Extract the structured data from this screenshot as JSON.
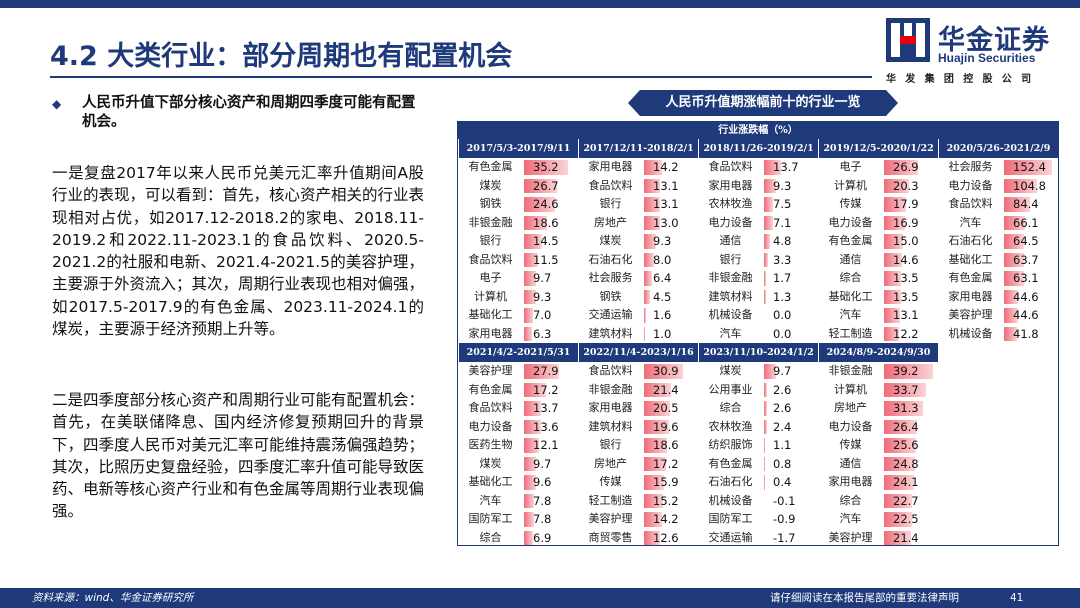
{
  "header": {
    "title": "4.2 大类行业：部分周期也有配置机会",
    "logo_cn": "华金证券",
    "logo_en": "Huajin Securities",
    "logo_sub": "华发集团控股公司",
    "brand_color": "#1f3a7a"
  },
  "left": {
    "bullet": "人民币升值下部分核心资产和周期四季度可能有配置机会。",
    "para1": "一是复盘2017年以来人民币兑美元汇率升值期间A股行业的表现，可以看到：首先，核心资产相关的行业表现相对占优，如2017.12-2018.2的家电、2018.11-2019.2和2022.11-2023.1的食品饮料、2020.5-2021.2的社服和电新、2021.4-2021.5的美容护理，主要源于外资流入；其次，周期行业表现也相对偏强，如2017.5-2017.9的有色金属、2023.11-2024.1的煤炭，主要源于经济预期上升等。",
    "para2": "二是四季度部分核心资产和周期行业可能有配置机会：首先，在美联储降息、国内经济修复预期回升的背景下，四季度人民币对美元汇率可能维持震荡偏强趋势；其次，比照历史复盘经验，四季度汇率升值可能导致医药、电新等核心资产行业和有色金属等周期行业表现偏强。"
  },
  "table": {
    "title": "人民币升值期涨幅前十的行业一览",
    "unit_header": "行业涨跌幅（%）",
    "bar_color": "#f06b78",
    "top": [
      {
        "period": "2017/5/3-2017/9/11",
        "max": 40,
        "rows": [
          {
            "industry": "有色金属",
            "value": "35.2"
          },
          {
            "industry": "煤炭",
            "value": "26.7"
          },
          {
            "industry": "钢铁",
            "value": "24.6"
          },
          {
            "industry": "非银金融",
            "value": "18.6"
          },
          {
            "industry": "银行",
            "value": "14.5"
          },
          {
            "industry": "食品饮料",
            "value": "11.5"
          },
          {
            "industry": "电子",
            "value": "9.7"
          },
          {
            "industry": "计算机",
            "value": "9.3"
          },
          {
            "industry": "基础化工",
            "value": "7.0"
          },
          {
            "industry": "家用电器",
            "value": "6.3"
          }
        ]
      },
      {
        "period": "2017/12/11-2018/2/1",
        "max": 40,
        "rows": [
          {
            "industry": "家用电器",
            "value": "14.2"
          },
          {
            "industry": "食品饮料",
            "value": "13.1"
          },
          {
            "industry": "银行",
            "value": "13.1"
          },
          {
            "industry": "房地产",
            "value": "13.0"
          },
          {
            "industry": "煤炭",
            "value": "9.3"
          },
          {
            "industry": "石油石化",
            "value": "8.0"
          },
          {
            "industry": "社会服务",
            "value": "6.4"
          },
          {
            "industry": "钢铁",
            "value": "4.5"
          },
          {
            "industry": "交通运输",
            "value": "1.6"
          },
          {
            "industry": "建筑材料",
            "value": "1.0"
          }
        ]
      },
      {
        "period": "2018/11/26-2019/2/1",
        "max": 40,
        "rows": [
          {
            "industry": "食品饮料",
            "value": "13.7"
          },
          {
            "industry": "家用电器",
            "value": "9.3"
          },
          {
            "industry": "农林牧渔",
            "value": "7.5"
          },
          {
            "industry": "电力设备",
            "value": "7.1"
          },
          {
            "industry": "通信",
            "value": "4.8"
          },
          {
            "industry": "银行",
            "value": "3.3"
          },
          {
            "industry": "非银金融",
            "value": "1.7"
          },
          {
            "industry": "建筑材料",
            "value": "1.3"
          },
          {
            "industry": "机械设备",
            "value": "0.0"
          },
          {
            "industry": "汽车",
            "value": "0.0"
          }
        ]
      },
      {
        "period": "2019/12/5-2020/1/22",
        "max": 40,
        "rows": [
          {
            "industry": "电子",
            "value": "26.9"
          },
          {
            "industry": "计算机",
            "value": "20.3"
          },
          {
            "industry": "传媒",
            "value": "17.9"
          },
          {
            "industry": "电力设备",
            "value": "16.9"
          },
          {
            "industry": "有色金属",
            "value": "15.0"
          },
          {
            "industry": "通信",
            "value": "14.6"
          },
          {
            "industry": "综合",
            "value": "13.5"
          },
          {
            "industry": "基础化工",
            "value": "13.5"
          },
          {
            "industry": "汽车",
            "value": "13.1"
          },
          {
            "industry": "轻工制造",
            "value": "12.2"
          }
        ]
      },
      {
        "period": "2020/5/26-2021/2/9",
        "max": 160,
        "rows": [
          {
            "industry": "社会服务",
            "value": "152.4"
          },
          {
            "industry": "电力设备",
            "value": "104.8"
          },
          {
            "industry": "食品饮料",
            "value": "84.4"
          },
          {
            "industry": "汽车",
            "value": "66.1"
          },
          {
            "industry": "石油石化",
            "value": "64.5"
          },
          {
            "industry": "基础化工",
            "value": "63.7"
          },
          {
            "industry": "有色金属",
            "value": "63.1"
          },
          {
            "industry": "家用电器",
            "value": "44.6"
          },
          {
            "industry": "美容护理",
            "value": "44.6"
          },
          {
            "industry": "机械设备",
            "value": "41.8"
          }
        ]
      }
    ],
    "bottom": [
      {
        "period": "2021/4/2-2021/5/31",
        "max": 40,
        "rows": [
          {
            "industry": "美容护理",
            "value": "27.9"
          },
          {
            "industry": "有色金属",
            "value": "17.2"
          },
          {
            "industry": "食品饮料",
            "value": "13.7"
          },
          {
            "industry": "电力设备",
            "value": "13.6"
          },
          {
            "industry": "医药生物",
            "value": "12.1"
          },
          {
            "industry": "煤炭",
            "value": "9.7"
          },
          {
            "industry": "基础化工",
            "value": "9.6"
          },
          {
            "industry": "汽车",
            "value": "7.8"
          },
          {
            "industry": "国防军工",
            "value": "7.8"
          },
          {
            "industry": "综合",
            "value": "6.9"
          }
        ]
      },
      {
        "period": "2022/11/4-2023/1/16",
        "max": 40,
        "rows": [
          {
            "industry": "食品饮料",
            "value": "30.9"
          },
          {
            "industry": "非银金融",
            "value": "21.4"
          },
          {
            "industry": "家用电器",
            "value": "20.5"
          },
          {
            "industry": "建筑材料",
            "value": "19.6"
          },
          {
            "industry": "银行",
            "value": "18.6"
          },
          {
            "industry": "房地产",
            "value": "17.2"
          },
          {
            "industry": "传媒",
            "value": "15.9"
          },
          {
            "industry": "轻工制造",
            "value": "15.2"
          },
          {
            "industry": "美容护理",
            "value": "14.2"
          },
          {
            "industry": "商贸零售",
            "value": "12.6"
          }
        ]
      },
      {
        "period": "2023/11/10-2024/1/2",
        "max": 40,
        "rows": [
          {
            "industry": "煤炭",
            "value": "9.7"
          },
          {
            "industry": "公用事业",
            "value": "2.6"
          },
          {
            "industry": "综合",
            "value": "2.6"
          },
          {
            "industry": "农林牧渔",
            "value": "2.4"
          },
          {
            "industry": "纺织服饰",
            "value": "1.1"
          },
          {
            "industry": "有色金属",
            "value": "0.8"
          },
          {
            "industry": "石油石化",
            "value": "0.4"
          },
          {
            "industry": "机械设备",
            "value": "-0.1"
          },
          {
            "industry": "国防军工",
            "value": "-0.9"
          },
          {
            "industry": "交通运输",
            "value": "-1.7"
          }
        ]
      },
      {
        "period": "2024/8/9-2024/9/30",
        "max": 40,
        "rows": [
          {
            "industry": "非银金融",
            "value": "39.2"
          },
          {
            "industry": "计算机",
            "value": "33.7"
          },
          {
            "industry": "房地产",
            "value": "31.3"
          },
          {
            "industry": "电力设备",
            "value": "26.4"
          },
          {
            "industry": "传媒",
            "value": "25.6"
          },
          {
            "industry": "通信",
            "value": "24.8"
          },
          {
            "industry": "家用电器",
            "value": "24.1"
          },
          {
            "industry": "综合",
            "value": "22.7"
          },
          {
            "industry": "汽车",
            "value": "22.5"
          },
          {
            "industry": "美容护理",
            "value": "21.4"
          }
        ]
      }
    ]
  },
  "footer": {
    "source": "资料来源：wind、华金证券研究所",
    "legal": "请仔细阅读在本报告尾部的重要法律声明",
    "page": "41"
  }
}
